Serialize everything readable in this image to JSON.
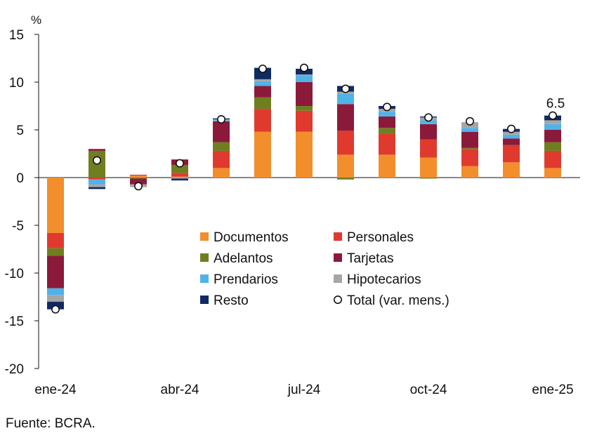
{
  "source": "Fuente: BCRA.",
  "colors": {
    "Documentos": "#f28e2b",
    "Personales": "#e03a2f",
    "Adelantos": "#6f7f1f",
    "Tarjetas": "#8b1a3a",
    "Prendarios": "#4fb3ea",
    "Hipotecarios": "#a6a6a6",
    "Resto": "#102a63",
    "Total": "#ffffff"
  },
  "chart_data": {
    "type": "bar",
    "stacked": true,
    "title": "",
    "ylabel": "%",
    "xlabel": "",
    "ylim": [
      -20,
      15
    ],
    "yticks": [
      -20,
      -15,
      -10,
      -5,
      0,
      5,
      10,
      15
    ],
    "categories": [
      "ene-24",
      "feb-24",
      "mar-24",
      "abr-24",
      "may-24",
      "jun-24",
      "jul-24",
      "ago-24",
      "sep-24",
      "oct-24",
      "nov-24",
      "dic-24",
      "ene-25"
    ],
    "xtick_labels": [
      {
        "index": 0,
        "label": "ene-24"
      },
      {
        "index": 3,
        "label": "abr-24"
      },
      {
        "index": 6,
        "label": "jul-24"
      },
      {
        "index": 9,
        "label": "oct-24"
      },
      {
        "index": 12,
        "label": "ene-25"
      }
    ],
    "series": [
      {
        "name": "Documentos",
        "values": [
          -5.8,
          0.0,
          0.2,
          0.1,
          1.0,
          4.8,
          4.8,
          2.4,
          2.4,
          2.1,
          1.2,
          1.6,
          1.0
        ]
      },
      {
        "name": "Personales",
        "values": [
          -1.6,
          -0.2,
          0.1,
          0.4,
          1.8,
          2.4,
          2.2,
          2.5,
          2.2,
          1.9,
          1.8,
          1.8,
          1.8
        ]
      },
      {
        "name": "Adelantos",
        "values": [
          -0.8,
          2.8,
          -0.1,
          0.8,
          0.9,
          1.2,
          0.5,
          -0.2,
          0.6,
          -0.1,
          0.1,
          0.0,
          0.9
        ]
      },
      {
        "name": "Tarjetas",
        "values": [
          -3.4,
          0.2,
          -0.6,
          0.6,
          2.2,
          1.2,
          2.5,
          2.8,
          1.2,
          1.6,
          1.7,
          0.7,
          1.3
        ]
      },
      {
        "name": "Prendarios",
        "values": [
          -0.7,
          -0.5,
          0.0,
          0.0,
          0.1,
          0.5,
          0.7,
          1.1,
          0.5,
          0.4,
          0.4,
          0.4,
          0.6
        ]
      },
      {
        "name": "Hipotecarios",
        "values": [
          -0.7,
          -0.3,
          -0.3,
          -0.1,
          0.1,
          0.2,
          0.1,
          0.2,
          0.3,
          0.3,
          0.6,
          0.3,
          0.4
        ]
      },
      {
        "name": "Resto",
        "values": [
          -0.8,
          -0.2,
          0.0,
          -0.2,
          0.1,
          1.2,
          0.6,
          0.6,
          0.3,
          0.1,
          0.0,
          0.3,
          0.5
        ]
      }
    ],
    "total": {
      "name": "Total (var. mens.)",
      "values": [
        -13.8,
        1.8,
        -0.9,
        1.5,
        6.1,
        11.4,
        11.5,
        9.3,
        7.4,
        6.3,
        5.9,
        5.1,
        6.5
      ]
    },
    "annotations": [
      {
        "index": 12,
        "text": "6.5"
      }
    ],
    "legend": {
      "placement": "center-bottom",
      "items": [
        {
          "key": "Documentos",
          "label": "Documentos",
          "marker": "square"
        },
        {
          "key": "Personales",
          "label": "Personales",
          "marker": "square"
        },
        {
          "key": "Adelantos",
          "label": "Adelantos",
          "marker": "square"
        },
        {
          "key": "Tarjetas",
          "label": "Tarjetas",
          "marker": "square"
        },
        {
          "key": "Prendarios",
          "label": "Prendarios",
          "marker": "square"
        },
        {
          "key": "Hipotecarios",
          "label": "Hipotecarios",
          "marker": "square"
        },
        {
          "key": "Resto",
          "label": "Resto",
          "marker": "square"
        },
        {
          "key": "Total",
          "label": "Total (var. mens.)",
          "marker": "circle"
        }
      ]
    }
  }
}
